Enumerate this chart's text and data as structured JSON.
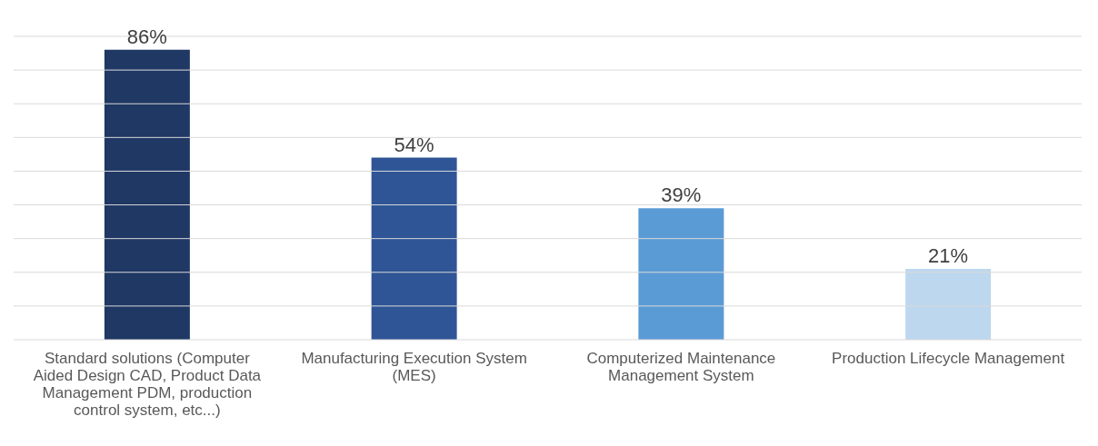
{
  "chart_data": {
    "type": "bar",
    "categories": [
      "Standard solutions (Computer Aided Design CAD, Product Data Management PDM, production control system, etc...)",
      "Manufacturing Execution System (MES)",
      "Computerized Maintenance Management System",
      "Production Lifecycle Management"
    ],
    "values": [
      86,
      54,
      39,
      21
    ],
    "value_labels": [
      "86%",
      "54%",
      "39%",
      "21%"
    ],
    "colors": [
      "#1f3864",
      "#2f5597",
      "#5b9bd5",
      "#bdd7ee"
    ],
    "ylim": [
      0,
      90
    ],
    "yticks": [
      {
        "value": 0,
        "label": null
      },
      {
        "value": 10,
        "label": null
      },
      {
        "value": 20,
        "label": null
      },
      {
        "value": 30,
        "label": null
      },
      {
        "value": 40,
        "label": null
      },
      {
        "value": 50,
        "label": null
      },
      {
        "value": 60,
        "label": null
      },
      {
        "value": 70,
        "label": null
      },
      {
        "value": 80,
        "label": null
      },
      {
        "value": 90,
        "label": null
      }
    ],
    "tick_labels": "x",
    "grid": "y"
  }
}
